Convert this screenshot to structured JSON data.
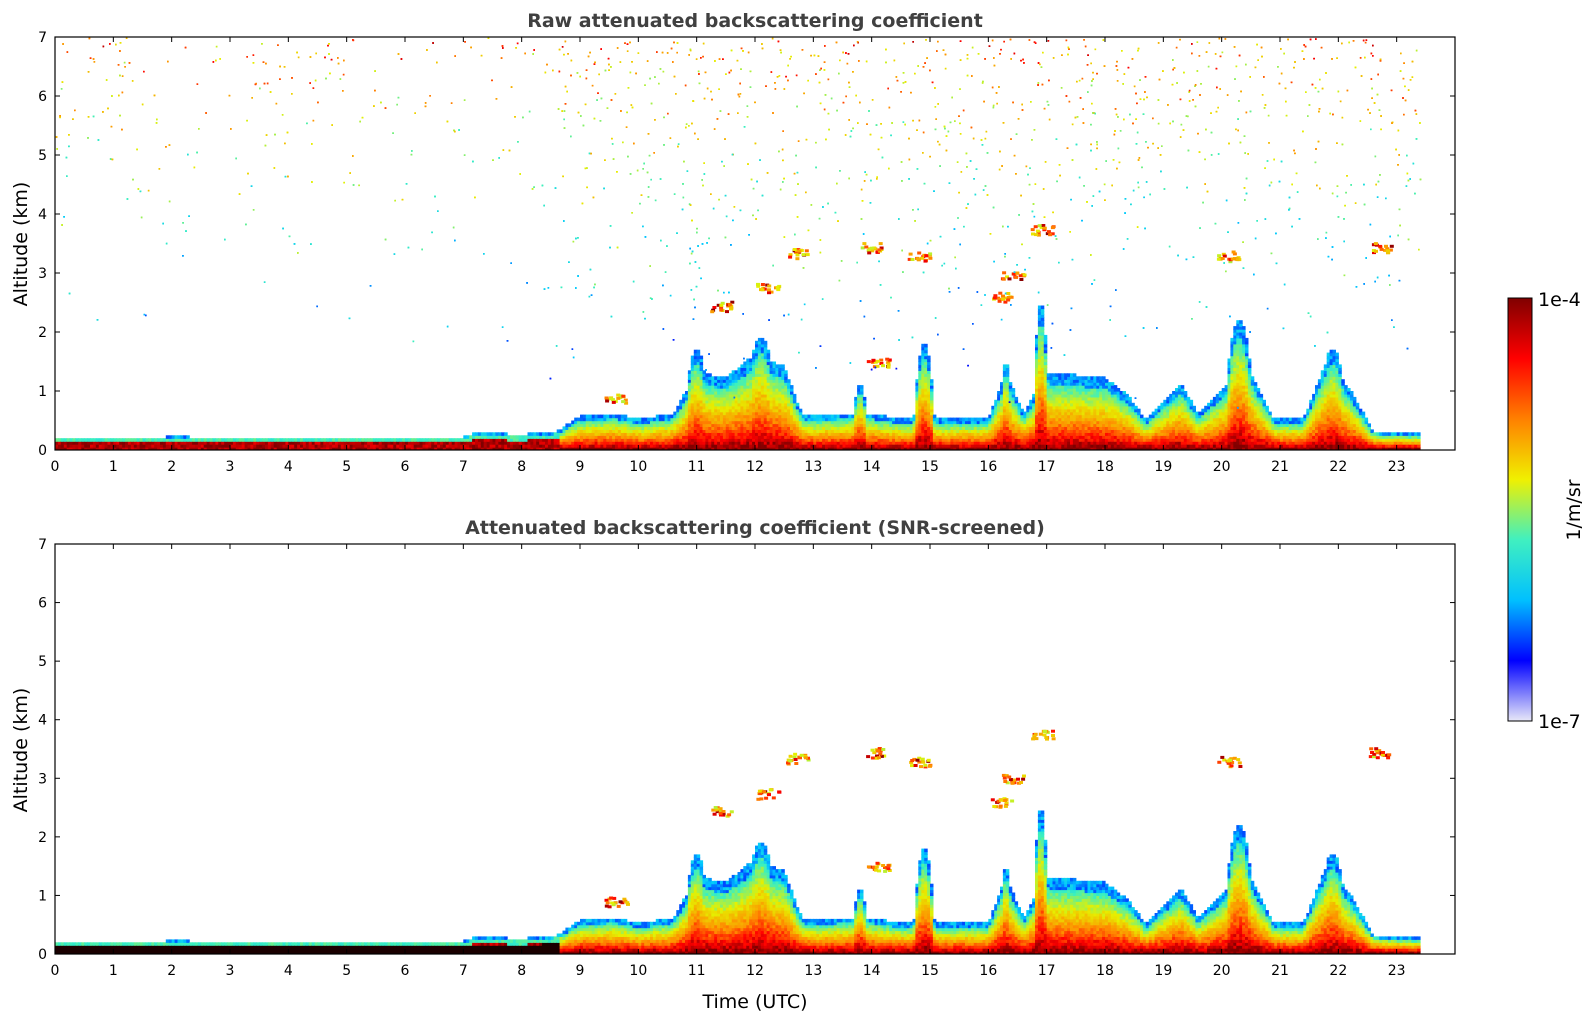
{
  "chart_data": [
    {
      "type": "heatmap",
      "title": "Raw attenuated backscattering coefficient",
      "xlabel": "",
      "ylabel": "Altitude (km)",
      "xlim": [
        0,
        24
      ],
      "ylim": [
        0,
        7
      ],
      "xticks": [
        "0",
        "1",
        "2",
        "3",
        "4",
        "5",
        "6",
        "7",
        "8",
        "9",
        "10",
        "11",
        "12",
        "13",
        "14",
        "15",
        "16",
        "17",
        "18",
        "19",
        "20",
        "21",
        "22",
        "23"
      ],
      "yticks": [
        "0",
        "1",
        "2",
        "3",
        "4",
        "5",
        "6",
        "7"
      ],
      "data_end_time": 23.4,
      "noise": true
    },
    {
      "type": "heatmap",
      "title": "Attenuated backscattering coefficient (SNR-screened)",
      "xlabel": "Time (UTC)",
      "ylabel": "Altitude (km)",
      "xlim": [
        0,
        24
      ],
      "ylim": [
        0,
        7
      ],
      "xticks": [
        "0",
        "1",
        "2",
        "3",
        "4",
        "5",
        "6",
        "7",
        "8",
        "9",
        "10",
        "11",
        "12",
        "13",
        "14",
        "15",
        "16",
        "17",
        "18",
        "19",
        "20",
        "21",
        "22",
        "23"
      ],
      "yticks": [
        "0",
        "1",
        "2",
        "3",
        "4",
        "5",
        "6",
        "7"
      ],
      "data_end_time": 23.4,
      "noise": false
    }
  ],
  "colorbar": {
    "label": "1/m/sr",
    "max_label": "1e-4",
    "min_label": "1e-7",
    "colormap": "jet",
    "colors": [
      "#e8e8f8",
      "#0000ff",
      "#00c0ff",
      "#40f0c0",
      "#f0f000",
      "#ff8000",
      "#ff0000",
      "#800000"
    ]
  },
  "features": {
    "boundary_layer_top_km": [
      [
        0,
        0.2
      ],
      [
        1.9,
        0.2
      ],
      [
        2,
        0.23
      ],
      [
        2.3,
        0.2
      ],
      [
        7,
        0.2
      ],
      [
        7.2,
        0.27
      ],
      [
        8,
        0.24
      ],
      [
        8.6,
        0.3
      ],
      [
        9,
        0.55
      ],
      [
        9.6,
        0.6
      ],
      [
        10,
        0.5
      ],
      [
        10.6,
        0.6
      ],
      [
        11,
        1.3
      ],
      [
        11.5,
        1.2
      ],
      [
        12,
        1.6
      ],
      [
        12.5,
        1.4
      ],
      [
        12.8,
        0.6
      ],
      [
        13,
        0.55
      ],
      [
        13.5,
        0.6
      ],
      [
        14,
        0.6
      ],
      [
        14.5,
        0.5
      ],
      [
        15,
        0.5
      ],
      [
        16,
        0.5
      ],
      [
        16.3,
        1.3
      ],
      [
        16.6,
        0.6
      ],
      [
        17,
        1.3
      ],
      [
        18,
        1.2
      ],
      [
        18.4,
        0.9
      ],
      [
        18.7,
        0.5
      ],
      [
        19,
        0.8
      ],
      [
        19.3,
        1.1
      ],
      [
        19.6,
        0.6
      ],
      [
        20,
        1.0
      ],
      [
        20.5,
        1.3
      ],
      [
        20.9,
        0.5
      ],
      [
        21.4,
        0.5
      ],
      [
        21.8,
        1.5
      ],
      [
        22.2,
        1.0
      ],
      [
        22.6,
        0.3
      ],
      [
        23.4,
        0.25
      ]
    ],
    "plumes": [
      {
        "t": 11.0,
        "h": 1.5,
        "w": 0.25
      },
      {
        "t": 12.1,
        "h": 1.7,
        "w": 0.35
      },
      {
        "t": 13.8,
        "h": 0.9,
        "w": 0.15
      },
      {
        "t": 14.9,
        "h": 1.6,
        "w": 0.2
      },
      {
        "t": 16.3,
        "h": 1.3,
        "w": 0.12
      },
      {
        "t": 16.9,
        "h": 2.3,
        "w": 0.15
      },
      {
        "t": 20.3,
        "h": 2.0,
        "w": 0.3
      },
      {
        "t": 21.9,
        "h": 1.5,
        "w": 0.3
      }
    ],
    "cloud_patches": [
      {
        "t": 9.6,
        "z": 0.9
      },
      {
        "t": 11.4,
        "z": 2.45
      },
      {
        "t": 12.2,
        "z": 2.75
      },
      {
        "t": 12.7,
        "z": 3.35
      },
      {
        "t": 14.0,
        "z": 3.45
      },
      {
        "t": 14.1,
        "z": 1.5
      },
      {
        "t": 14.8,
        "z": 3.3
      },
      {
        "t": 16.2,
        "z": 2.6
      },
      {
        "t": 16.4,
        "z": 3.0
      },
      {
        "t": 16.9,
        "z": 3.75
      },
      {
        "t": 20.1,
        "z": 3.3
      },
      {
        "t": 22.7,
        "z": 3.45
      }
    ]
  }
}
